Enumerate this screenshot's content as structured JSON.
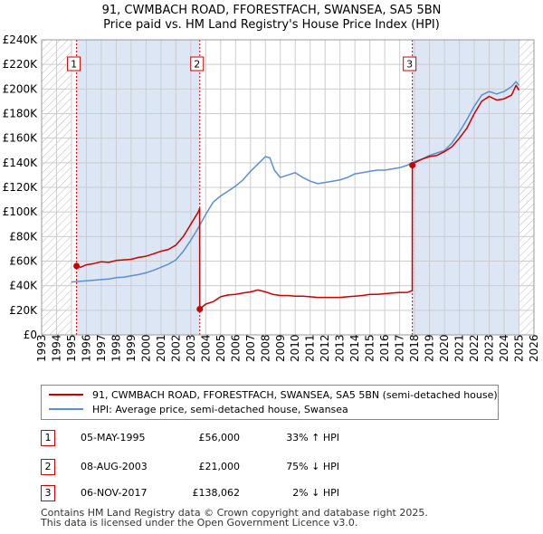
{
  "title_line1": "91, CWMBACH ROAD, FFORESTFACH, SWANSEA, SA5 5BN",
  "title_line2": "Price paid vs. HM Land Registry's House Price Index (HPI)",
  "colors": {
    "property": "#cc0000",
    "hpi": "#5b8fd1",
    "shade": "#dce6f5",
    "grid": "#cccccc",
    "marker": "#cc0000"
  },
  "chart_data": {
    "type": "line",
    "xlim": [
      1993,
      2026
    ],
    "ylim": [
      0,
      240000
    ],
    "x_ticks": [
      "1993",
      "1994",
      "1995",
      "1996",
      "1997",
      "1998",
      "1999",
      "2000",
      "2001",
      "2002",
      "2003",
      "2004",
      "2005",
      "2006",
      "2007",
      "2008",
      "2009",
      "2010",
      "2011",
      "2012",
      "2013",
      "2014",
      "2015",
      "2016",
      "2017",
      "2018",
      "2019",
      "2020",
      "2021",
      "2022",
      "2023",
      "2024",
      "2025",
      "2026"
    ],
    "y_ticks": [
      {
        "value": 0,
        "label": "£0"
      },
      {
        "value": 20000,
        "label": "£20K"
      },
      {
        "value": 40000,
        "label": "£40K"
      },
      {
        "value": 60000,
        "label": "£60K"
      },
      {
        "value": 80000,
        "label": "£80K"
      },
      {
        "value": 100000,
        "label": "£100K"
      },
      {
        "value": 120000,
        "label": "£120K"
      },
      {
        "value": 140000,
        "label": "£140K"
      },
      {
        "value": 160000,
        "label": "£160K"
      },
      {
        "value": 180000,
        "label": "£180K"
      },
      {
        "value": 200000,
        "label": "£200K"
      },
      {
        "value": 220000,
        "label": "£220K"
      },
      {
        "value": 240000,
        "label": "£240K"
      }
    ],
    "hatched_before": 1995.0,
    "hatched_after": 2025.0,
    "series": [
      {
        "name": "91, CWMBACH ROAD, FFORESTFACH, SWANSEA, SA5 5BN (semi-detached house)",
        "color": "#cc0000",
        "points": [
          [
            1995.34,
            56000
          ],
          [
            1995.6,
            55000
          ],
          [
            1996,
            57000
          ],
          [
            1996.5,
            58000
          ],
          [
            1997,
            59500
          ],
          [
            1997.5,
            59000
          ],
          [
            1998,
            60500
          ],
          [
            1998.5,
            61000
          ],
          [
            1999,
            61500
          ],
          [
            1999.5,
            63000
          ],
          [
            2000,
            64000
          ],
          [
            2000.5,
            66000
          ],
          [
            2001,
            68000
          ],
          [
            2001.5,
            69500
          ],
          [
            2002,
            73000
          ],
          [
            2002.5,
            80000
          ],
          [
            2003,
            90000
          ],
          [
            2003.5,
            100000
          ],
          [
            2003.59,
            103000
          ],
          [
            2003.6,
            21000
          ],
          [
            2004,
            25000
          ],
          [
            2004.5,
            27000
          ],
          [
            2005,
            31000
          ],
          [
            2005.5,
            32500
          ],
          [
            2006,
            33000
          ],
          [
            2006.5,
            34000
          ],
          [
            2007,
            35000
          ],
          [
            2007.5,
            36500
          ],
          [
            2008,
            35000
          ],
          [
            2008.5,
            33000
          ],
          [
            2009,
            32000
          ],
          [
            2009.5,
            32000
          ],
          [
            2010,
            31500
          ],
          [
            2010.5,
            31500
          ],
          [
            2011,
            31000
          ],
          [
            2011.5,
            30500
          ],
          [
            2012,
            30500
          ],
          [
            2012.5,
            30500
          ],
          [
            2013,
            30500
          ],
          [
            2013.5,
            31000
          ],
          [
            2014,
            31500
          ],
          [
            2014.5,
            32000
          ],
          [
            2015,
            33000
          ],
          [
            2015.5,
            33000
          ],
          [
            2016,
            33500
          ],
          [
            2016.5,
            34000
          ],
          [
            2017,
            34500
          ],
          [
            2017.5,
            34500
          ],
          [
            2017.84,
            36000
          ],
          [
            2017.85,
            138062
          ],
          [
            2018,
            140000
          ],
          [
            2018.5,
            143000
          ],
          [
            2019,
            145000
          ],
          [
            2019.5,
            146000
          ],
          [
            2020,
            149000
          ],
          [
            2020.5,
            153000
          ],
          [
            2021,
            160000
          ],
          [
            2021.5,
            168000
          ],
          [
            2022,
            180000
          ],
          [
            2022.5,
            190000
          ],
          [
            2023,
            194000
          ],
          [
            2023.5,
            191000
          ],
          [
            2024,
            192000
          ],
          [
            2024.5,
            195000
          ],
          [
            2024.8,
            203000
          ],
          [
            2025,
            199000
          ]
        ]
      },
      {
        "name": "HPI: Average price, semi-detached house, Swansea",
        "color": "#5b8fd1",
        "points": [
          [
            1995,
            43000
          ],
          [
            1995.5,
            43500
          ],
          [
            1996,
            44000
          ],
          [
            1996.5,
            44500
          ],
          [
            1997,
            45000
          ],
          [
            1997.5,
            45500
          ],
          [
            1998,
            46500
          ],
          [
            1998.5,
            47000
          ],
          [
            1999,
            48000
          ],
          [
            1999.5,
            49000
          ],
          [
            2000,
            50500
          ],
          [
            2000.5,
            52500
          ],
          [
            2001,
            55000
          ],
          [
            2001.5,
            57500
          ],
          [
            2002,
            61000
          ],
          [
            2002.5,
            68000
          ],
          [
            2003,
            77000
          ],
          [
            2003.5,
            87000
          ],
          [
            2004,
            98000
          ],
          [
            2004.5,
            108000
          ],
          [
            2005,
            113000
          ],
          [
            2005.5,
            117000
          ],
          [
            2006,
            121000
          ],
          [
            2006.5,
            126000
          ],
          [
            2007,
            133000
          ],
          [
            2007.5,
            139000
          ],
          [
            2008,
            145000
          ],
          [
            2008.3,
            144000
          ],
          [
            2008.6,
            134000
          ],
          [
            2009,
            128000
          ],
          [
            2009.5,
            130000
          ],
          [
            2010,
            132000
          ],
          [
            2010.5,
            128000
          ],
          [
            2011,
            125000
          ],
          [
            2011.5,
            123000
          ],
          [
            2012,
            124000
          ],
          [
            2012.5,
            125000
          ],
          [
            2013,
            126000
          ],
          [
            2013.5,
            128000
          ],
          [
            2014,
            131000
          ],
          [
            2014.5,
            132000
          ],
          [
            2015,
            133000
          ],
          [
            2015.5,
            134000
          ],
          [
            2016,
            134000
          ],
          [
            2016.5,
            135000
          ],
          [
            2017,
            136000
          ],
          [
            2017.5,
            138000
          ],
          [
            2018,
            141000
          ],
          [
            2018.5,
            143000
          ],
          [
            2019,
            146000
          ],
          [
            2019.5,
            148000
          ],
          [
            2020,
            150000
          ],
          [
            2020.5,
            156000
          ],
          [
            2021,
            165000
          ],
          [
            2021.5,
            175000
          ],
          [
            2022,
            186000
          ],
          [
            2022.5,
            195000
          ],
          [
            2023,
            198000
          ],
          [
            2023.5,
            196000
          ],
          [
            2024,
            198000
          ],
          [
            2024.5,
            202000
          ],
          [
            2024.8,
            206000
          ],
          [
            2025,
            203000
          ]
        ]
      }
    ],
    "sales": [
      {
        "num": "1",
        "x": 1995.34,
        "y": 56000
      },
      {
        "num": "2",
        "x": 2003.6,
        "y": 21000
      },
      {
        "num": "3",
        "x": 2017.85,
        "y": 138062
      }
    ]
  },
  "legend": {
    "property_label": "91, CWMBACH ROAD, FFORESTFACH, SWANSEA, SA5 5BN (semi-detached house)",
    "hpi_label": "HPI: Average price, semi-detached house, Swansea"
  },
  "sales_table": [
    {
      "num": "1",
      "date": "05-MAY-1995",
      "price": "£56,000",
      "hpi": "33% ↑ HPI"
    },
    {
      "num": "2",
      "date": "08-AUG-2003",
      "price": "£21,000",
      "hpi": "75% ↓ HPI"
    },
    {
      "num": "3",
      "date": "06-NOV-2017",
      "price": "£138,062",
      "hpi": "2% ↓ HPI"
    }
  ],
  "footer_line1": "Contains HM Land Registry data © Crown copyright and database right 2025.",
  "footer_line2": "This data is licensed under the Open Government Licence v3.0."
}
